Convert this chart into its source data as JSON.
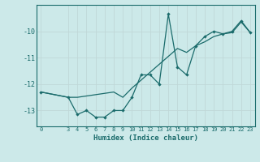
{
  "x": [
    0,
    3,
    4,
    5,
    6,
    7,
    8,
    9,
    10,
    11,
    12,
    13,
    14,
    15,
    16,
    17,
    18,
    19,
    20,
    21,
    22,
    23
  ],
  "y": [
    -12.3,
    -12.5,
    -13.15,
    -13.0,
    -13.25,
    -13.25,
    -13.0,
    -13.0,
    -12.5,
    -11.65,
    -11.65,
    -12.0,
    -9.35,
    -11.35,
    -11.65,
    -10.55,
    -10.2,
    -10.0,
    -10.1,
    -10.0,
    -9.6,
    -10.05
  ],
  "trend_x": [
    0,
    3,
    4,
    5,
    6,
    7,
    8,
    9,
    10,
    11,
    12,
    13,
    14,
    15,
    16,
    17,
    18,
    19,
    20,
    21,
    22,
    23
  ],
  "trend_y": [
    -12.3,
    -12.5,
    -12.5,
    -12.45,
    -12.4,
    -12.35,
    -12.3,
    -12.5,
    -12.15,
    -11.85,
    -11.55,
    -11.25,
    -10.95,
    -10.65,
    -10.8,
    -10.55,
    -10.4,
    -10.2,
    -10.1,
    -10.05,
    -9.65,
    -10.05
  ],
  "line_color": "#1a6b6b",
  "bg_color": "#cce9e9",
  "grid_color": "#c0d8d8",
  "xlabel": "Humidex (Indice chaleur)",
  "ylim": [
    -13.6,
    -9.0
  ],
  "xlim": [
    -0.5,
    23.5
  ],
  "yticks": [
    -13,
    -12,
    -11,
    -10
  ],
  "xticks": [
    0,
    3,
    4,
    5,
    6,
    7,
    8,
    9,
    10,
    11,
    12,
    13,
    14,
    15,
    16,
    17,
    18,
    19,
    20,
    21,
    22,
    23
  ]
}
